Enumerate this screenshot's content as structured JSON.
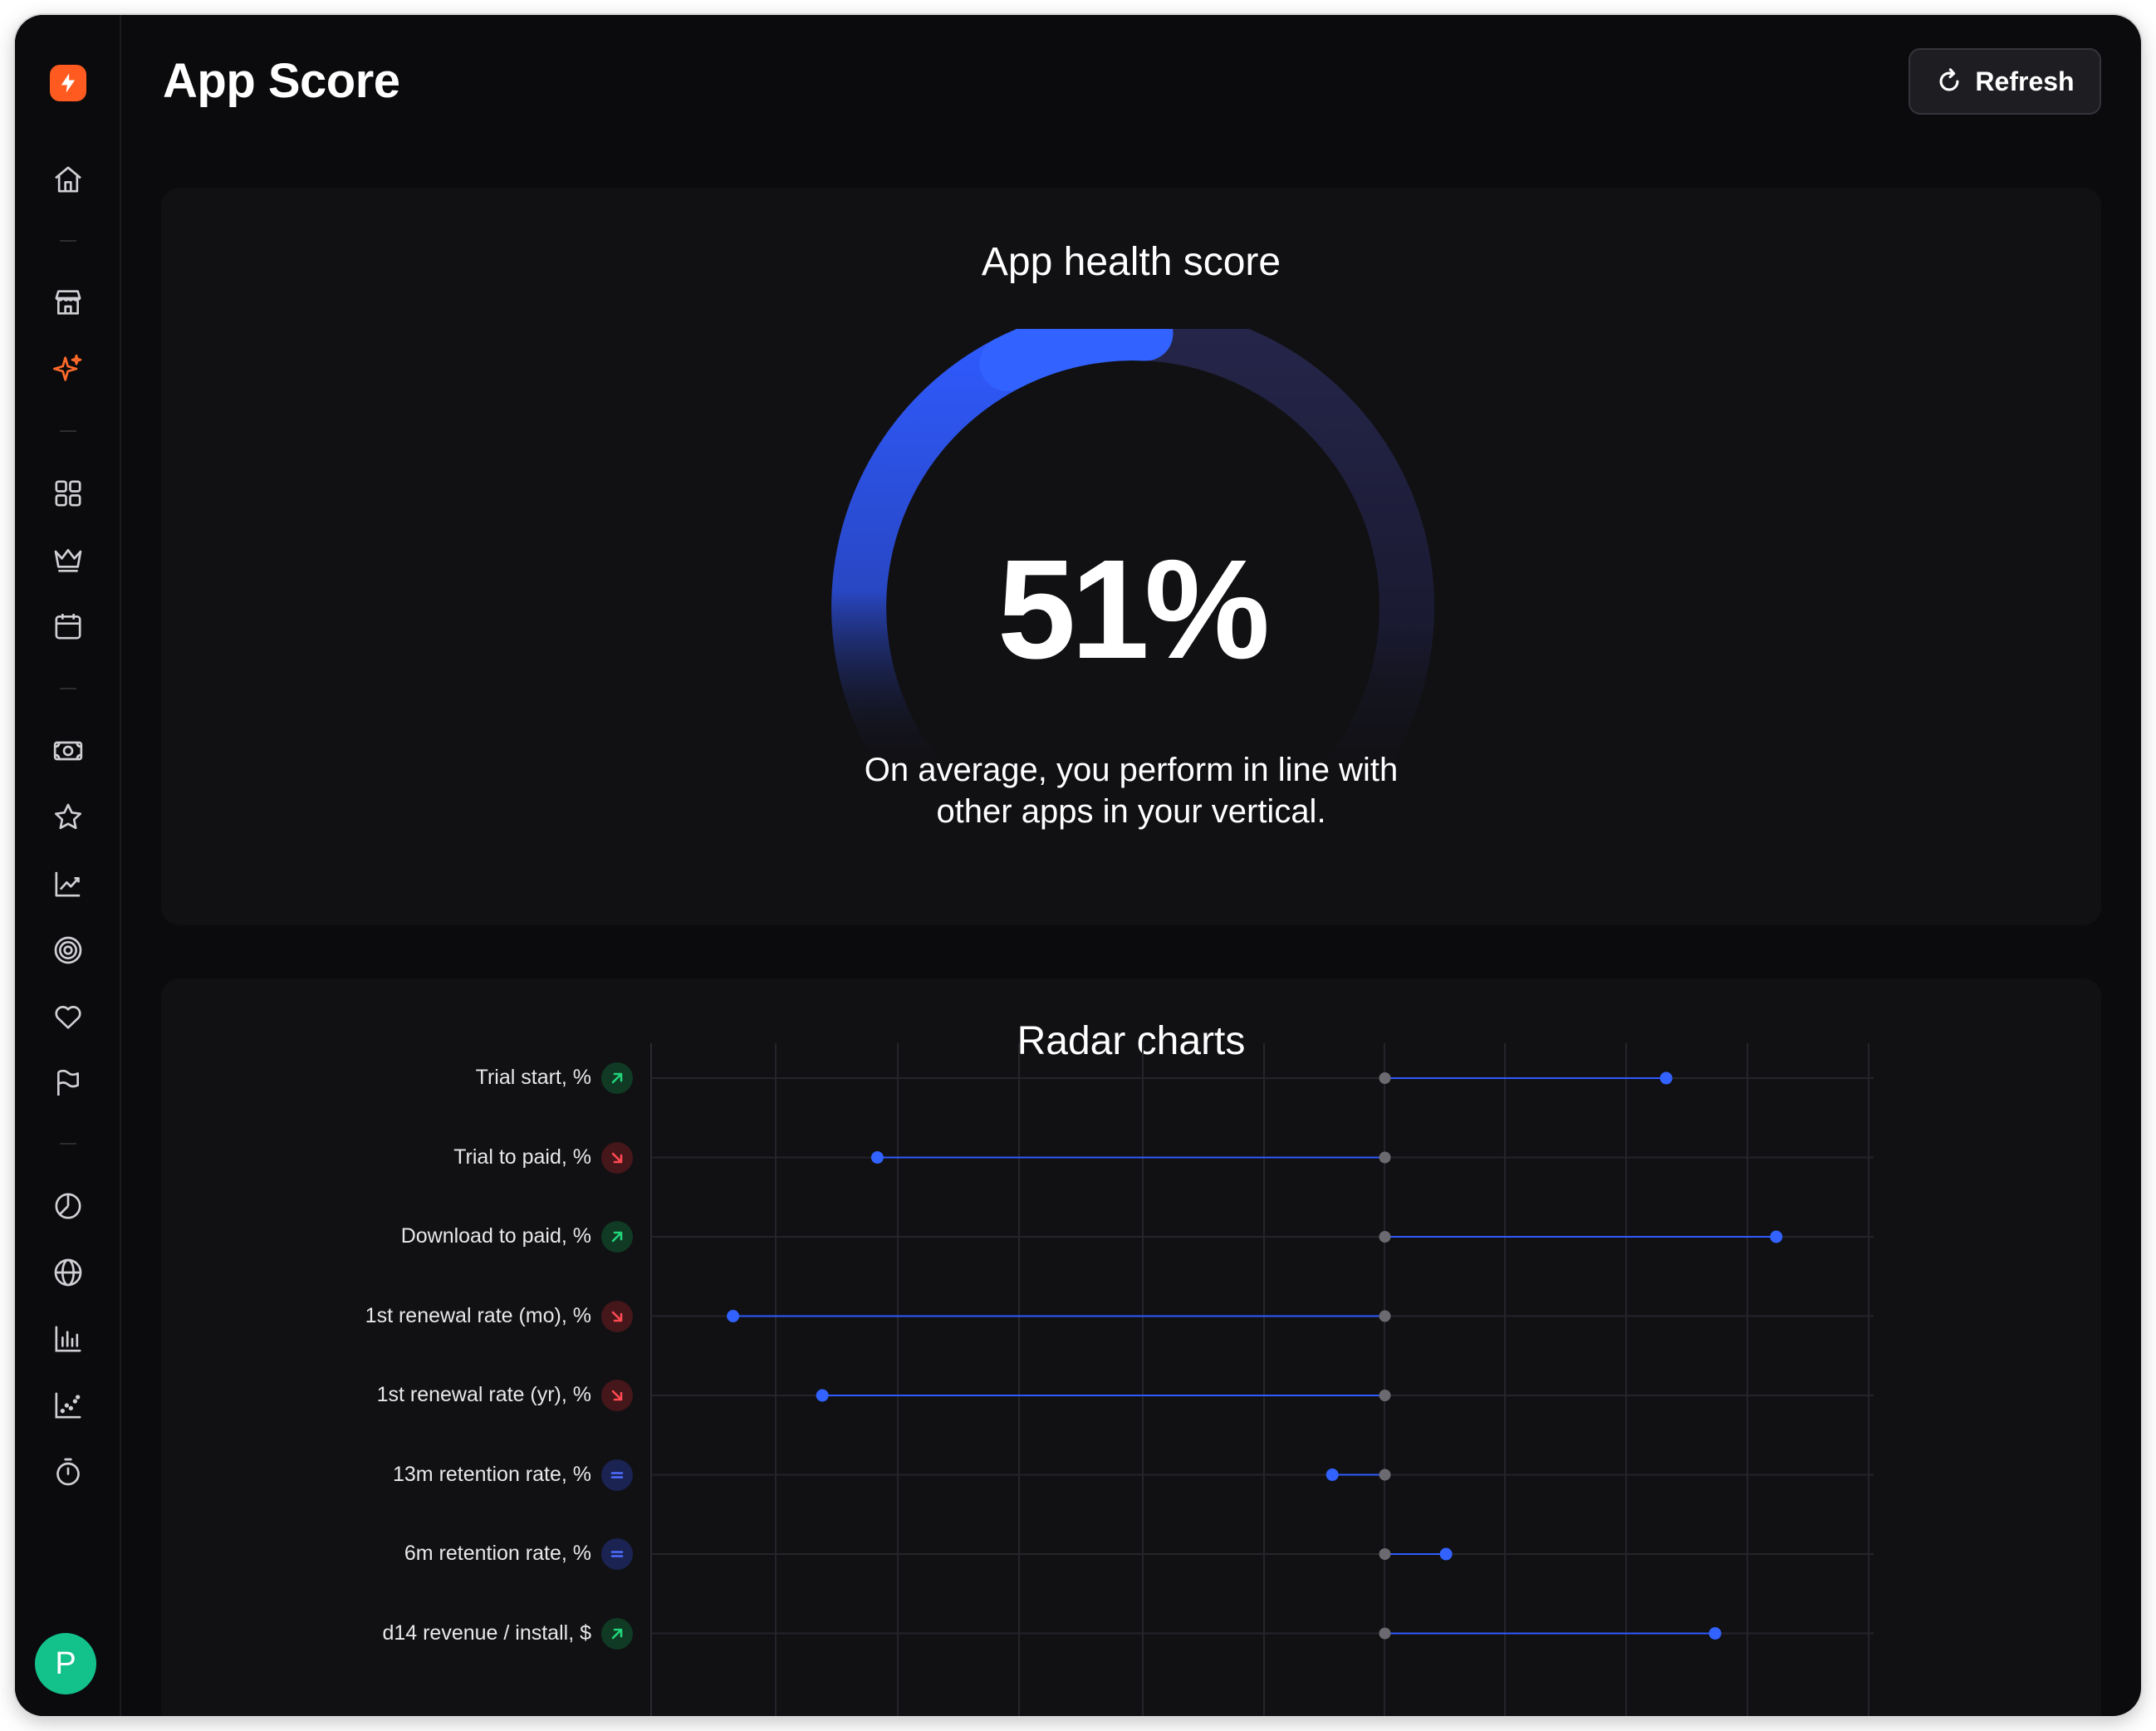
{
  "header": {
    "title": "App Score",
    "refresh_label": "Refresh"
  },
  "sidebar": {
    "logo": "bolt-logo",
    "items": [
      {
        "icon": "home-icon"
      },
      {
        "icon": "store-icon"
      },
      {
        "icon": "sparkle-icon",
        "active": true
      },
      {
        "icon": "grid-icon"
      },
      {
        "icon": "crown-icon"
      },
      {
        "icon": "calendar-icon"
      },
      {
        "icon": "money-icon"
      },
      {
        "icon": "star-icon"
      },
      {
        "icon": "trend-chart-icon"
      },
      {
        "icon": "target-icon"
      },
      {
        "icon": "heart-icon"
      },
      {
        "icon": "flag-icon"
      },
      {
        "icon": "pie-chart-icon"
      },
      {
        "icon": "globe-icon"
      },
      {
        "icon": "bar-chart-icon"
      },
      {
        "icon": "scatter-chart-icon"
      },
      {
        "icon": "timer-icon"
      }
    ],
    "avatar_initial": "P"
  },
  "health": {
    "title": "App health score",
    "score_label": "51%",
    "score": 51,
    "description": "On average, you perform in line with other apps in your vertical.",
    "colors": {
      "progress": "#2f5bff",
      "track": "#22223a"
    }
  },
  "chart_data": {
    "type": "dumbbell",
    "title": "Radar charts",
    "baseline": 0,
    "xlim": [
      -6,
      4.2
    ],
    "grid": true,
    "rows": [
      {
        "label": "Trial start, %",
        "trend": "up",
        "value": 2.3
      },
      {
        "label": "Trial to paid, %",
        "trend": "down",
        "value": -4.15
      },
      {
        "label": "Download to paid, %",
        "trend": "up",
        "value": 3.2
      },
      {
        "label": "1st renewal rate (mo), %",
        "trend": "down",
        "value": -5.33
      },
      {
        "label": "1st renewal rate (yr), %",
        "trend": "down",
        "value": -4.6
      },
      {
        "label": "13m retention rate, %",
        "trend": "same",
        "value": -0.43
      },
      {
        "label": "6m retention rate, %",
        "trend": "same",
        "value": 0.5
      },
      {
        "label": "d14 revenue / install, $",
        "trend": "up",
        "value": 2.7
      }
    ]
  }
}
